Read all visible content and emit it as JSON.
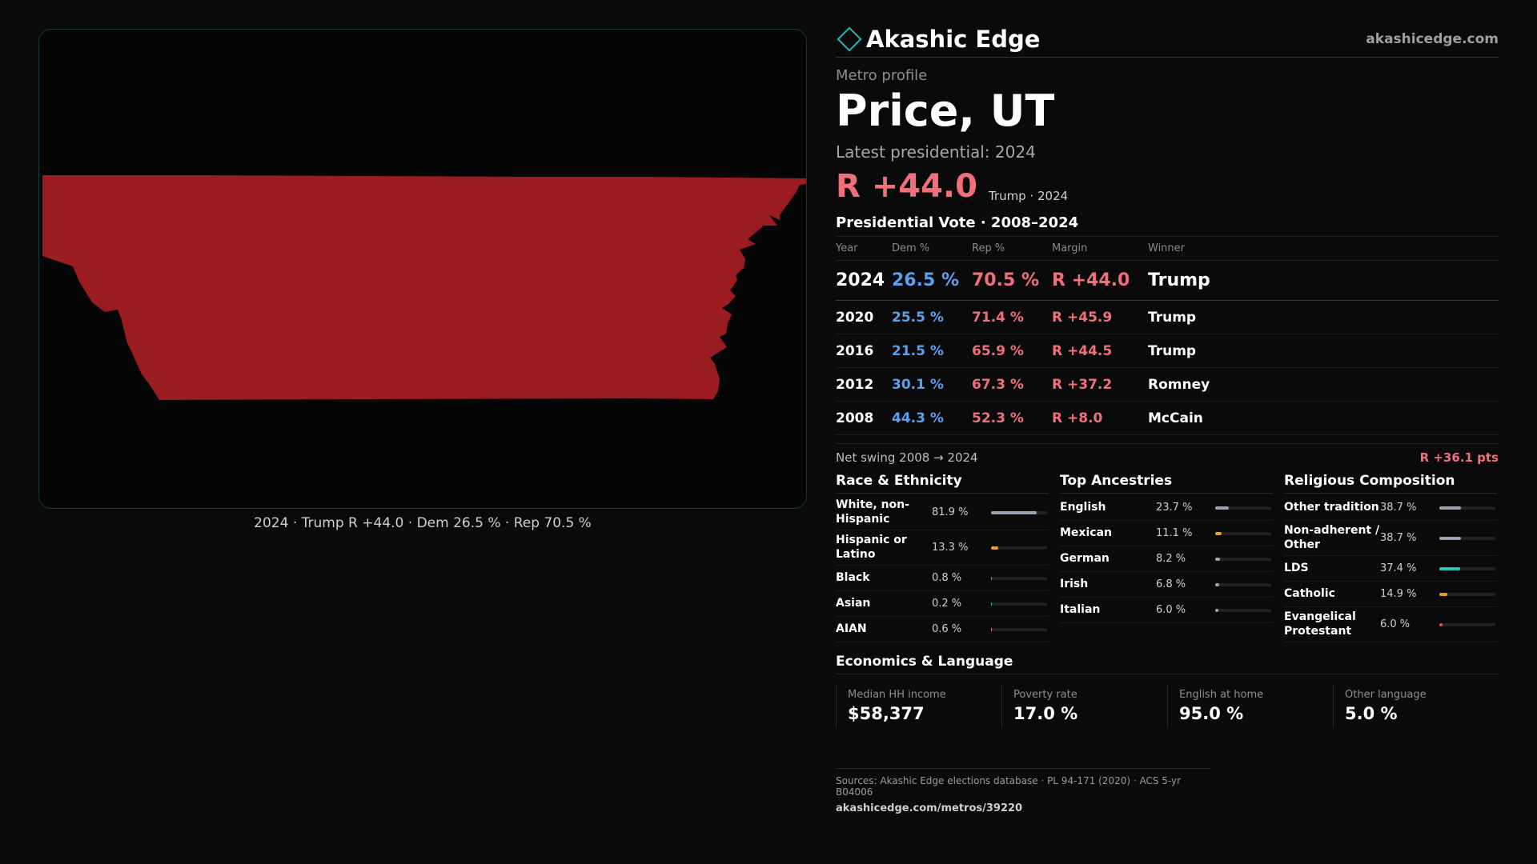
{
  "header": {
    "brand": "Akashic Edge",
    "url": "akashicedge.com"
  },
  "profile": {
    "subtitle": "Metro profile",
    "city": "Price, UT",
    "latest_label": "Latest presidential: 2024",
    "margin": "R +44.0",
    "margin_note": "Trump · 2024"
  },
  "map": {
    "fill_color": "#9a1c20",
    "caption": "2024 · Trump R +44.0 · Dem 26.5 % · Rep 70.5 %"
  },
  "votes": {
    "title": "Presidential Vote · 2008–2024",
    "headers": [
      "Year",
      "Dem %",
      "Rep %",
      "Margin",
      "Winner"
    ],
    "rows": [
      {
        "year": "2024",
        "dem": "26.5 %",
        "rep": "70.5 %",
        "margin": "R +44.0",
        "winner": "Trump"
      },
      {
        "year": "2020",
        "dem": "25.5 %",
        "rep": "71.4 %",
        "margin": "R +45.9",
        "winner": "Trump"
      },
      {
        "year": "2016",
        "dem": "21.5 %",
        "rep": "65.9 %",
        "margin": "R +44.5",
        "winner": "Trump"
      },
      {
        "year": "2012",
        "dem": "30.1 %",
        "rep": "67.3 %",
        "margin": "R +37.2",
        "winner": "Romney"
      },
      {
        "year": "2008",
        "dem": "44.3 %",
        "rep": "52.3 %",
        "margin": "R +8.0",
        "winner": "McCain"
      }
    ]
  },
  "swing": {
    "label": "Net swing 2008 → 2024",
    "value": "R +36.1 pts"
  },
  "race": {
    "title": "Race & Ethnicity",
    "items": [
      {
        "label": "White, non-Hispanic",
        "value": "81.9 %",
        "pct": 81.9,
        "color": "#9ca3b0"
      },
      {
        "label": "Hispanic or Latino",
        "value": "13.3 %",
        "pct": 13.3,
        "color": "#e8a02a"
      },
      {
        "label": "Black",
        "value": "0.8 %",
        "pct": 0.8,
        "color": "#8a8a8a"
      },
      {
        "label": "Asian",
        "value": "0.2 %",
        "pct": 0.2,
        "color": "#2ab4b4"
      },
      {
        "label": "AIAN",
        "value": "0.6 %",
        "pct": 0.6,
        "color": "#e07050"
      }
    ]
  },
  "ancestry": {
    "title": "Top Ancestries",
    "items": [
      {
        "label": "English",
        "value": "23.7 %",
        "pct": 23.7,
        "color": "#9ca3b0"
      },
      {
        "label": "Mexican",
        "value": "11.1 %",
        "pct": 11.1,
        "color": "#e8a02a"
      },
      {
        "label": "German",
        "value": "8.2 %",
        "pct": 8.2,
        "color": "#9ca3b0"
      },
      {
        "label": "Irish",
        "value": "6.8 %",
        "pct": 6.8,
        "color": "#9ca3b0"
      },
      {
        "label": "Italian",
        "value": "6.0 %",
        "pct": 6.0,
        "color": "#9ca3b0"
      }
    ]
  },
  "religion": {
    "title": "Religious Composition",
    "items": [
      {
        "label": "Other tradition",
        "value": "38.7 %",
        "pct": 38.7,
        "color": "#9ca3b0"
      },
      {
        "label": "Non-adherent / Other",
        "value": "38.7 %",
        "pct": 38.7,
        "color": "#9ca3b0"
      },
      {
        "label": "LDS",
        "value": "37.4 %",
        "pct": 37.4,
        "color": "#2ac4b0"
      },
      {
        "label": "Catholic",
        "value": "14.9 %",
        "pct": 14.9,
        "color": "#e8a02a"
      },
      {
        "label": "Evangelical Protestant",
        "value": "6.0 %",
        "pct": 6.0,
        "color": "#e05050"
      }
    ]
  },
  "economics": {
    "title": "Economics & Language",
    "items": [
      {
        "label": "Median HH income",
        "value": "$58,377"
      },
      {
        "label": "Poverty rate",
        "value": "17.0 %"
      },
      {
        "label": "English at home",
        "value": "95.0 %"
      },
      {
        "label": "Other language",
        "value": "5.0 %"
      }
    ]
  },
  "sources": {
    "text": "Sources: Akashic Edge elections database · PL 94-171 (2020) · ACS 5-yr B04006",
    "url": "akashicedge.com/metros/39220"
  }
}
